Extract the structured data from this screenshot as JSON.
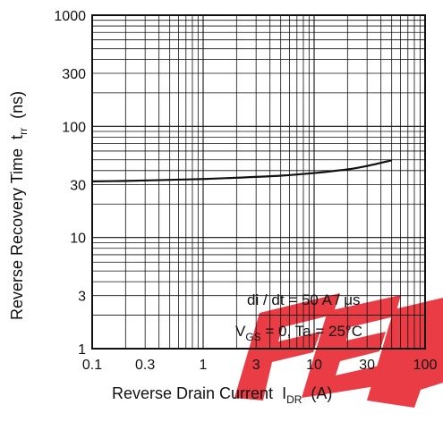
{
  "chart_data": {
    "type": "line",
    "title": "",
    "xlabel": "Reverse Drain Current",
    "xlabel_symbol": "I",
    "xlabel_sub": "DR",
    "xlabel_unit": "(A)",
    "ylabel": "Reverse Recovery Time",
    "ylabel_symbol": "t",
    "ylabel_sub": "rr",
    "ylabel_unit": "(ns)",
    "xscale": "log",
    "yscale": "log",
    "xlim": [
      0.1,
      100
    ],
    "ylim": [
      1,
      1000
    ],
    "grid": true,
    "x_ticks": [
      0.1,
      0.3,
      1,
      3,
      10,
      30,
      100
    ],
    "x_tick_labels": [
      "0.1",
      "0.3",
      "1",
      "3",
      "10",
      "30",
      "100"
    ],
    "y_ticks": [
      1,
      3,
      10,
      30,
      100,
      300,
      1000
    ],
    "y_tick_labels": [
      "1",
      "3",
      "10",
      "30",
      "100",
      "300",
      "1000"
    ],
    "series": [
      {
        "color": "#111111",
        "x": [
          0.1,
          0.2,
          0.5,
          1,
          2,
          5,
          10,
          20,
          30,
          50
        ],
        "y": [
          32,
          32.3,
          33,
          33.6,
          34.5,
          36,
          38,
          41,
          44,
          49.5
        ]
      }
    ],
    "annotations": [
      {
        "text": "di / dt = 50 A / μs"
      },
      {
        "text_parts": [
          "V",
          "GS",
          " = 0, Ta = 25°C"
        ]
      }
    ],
    "annotation_position": "bottom-right",
    "watermark": {
      "text": "FEB",
      "color": "#e8323a"
    }
  }
}
